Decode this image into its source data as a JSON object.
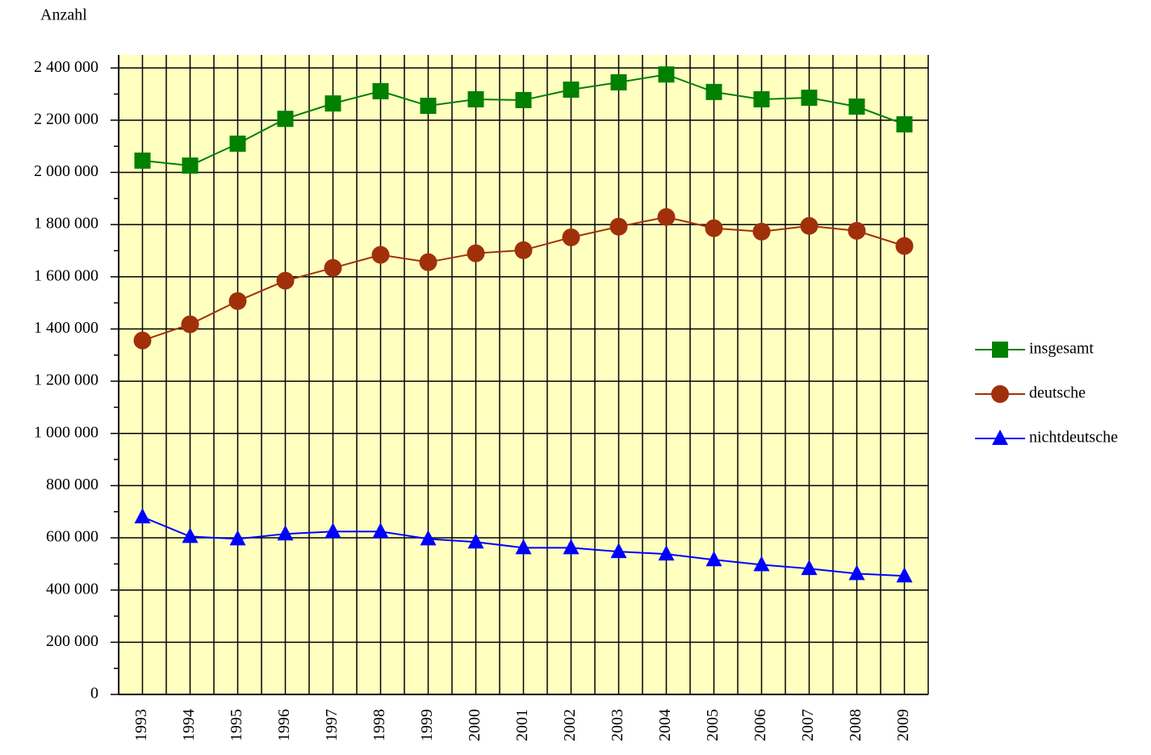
{
  "chart_data": {
    "type": "line",
    "y_label": "Anzahl",
    "categories": [
      "1993",
      "1994",
      "1995",
      "1996",
      "1997",
      "1998",
      "1999",
      "2000",
      "2001",
      "2002",
      "2003",
      "2004",
      "2005",
      "2006",
      "2007",
      "2008",
      "2009"
    ],
    "series": [
      {
        "name": "insgesamt",
        "color": "#008000",
        "marker": "square",
        "values": [
          2045000,
          2026000,
          2110000,
          2205000,
          2264000,
          2311000,
          2255000,
          2280000,
          2277000,
          2317000,
          2345000,
          2375000,
          2308000,
          2280000,
          2286000,
          2252000,
          2184000
        ]
      },
      {
        "name": "deutsche",
        "color": "#a0300a",
        "marker": "circle",
        "values": [
          1356000,
          1418000,
          1507000,
          1585000,
          1634000,
          1684000,
          1656000,
          1690000,
          1702000,
          1751000,
          1792000,
          1829000,
          1786000,
          1773000,
          1795000,
          1776000,
          1718000
        ]
      },
      {
        "name": "nichtdeutsche",
        "color": "#0000ff",
        "marker": "triangle",
        "values": [
          680000,
          605000,
          596000,
          615000,
          624000,
          624000,
          596000,
          584000,
          562000,
          562000,
          547000,
          538000,
          516000,
          497000,
          482000,
          463000,
          454000
        ]
      }
    ],
    "ylim": [
      0,
      2450000
    ],
    "yticks": [
      0,
      {
        "value": 200000,
        "label": "200 000"
      },
      {
        "value": 400000,
        "label": "400 000"
      },
      {
        "value": 600000,
        "label": "600 000"
      },
      {
        "value": 800000,
        "label": "800 000"
      },
      {
        "value": 1000000,
        "label": "1 000 000"
      },
      {
        "value": 1200000,
        "label": "1 200 000"
      },
      {
        "value": 1400000,
        "label": "1 400 000"
      },
      {
        "value": 1600000,
        "label": "1 600 000"
      },
      {
        "value": 1800000,
        "label": "1 800 000"
      },
      {
        "value": 2000000,
        "label": "2 000 000"
      },
      {
        "value": 2200000,
        "label": "2 200 000"
      },
      {
        "value": 2400000,
        "label": "2 400 000"
      }
    ],
    "grid": true,
    "plot_background": "#ffffc0",
    "legend": "right"
  }
}
